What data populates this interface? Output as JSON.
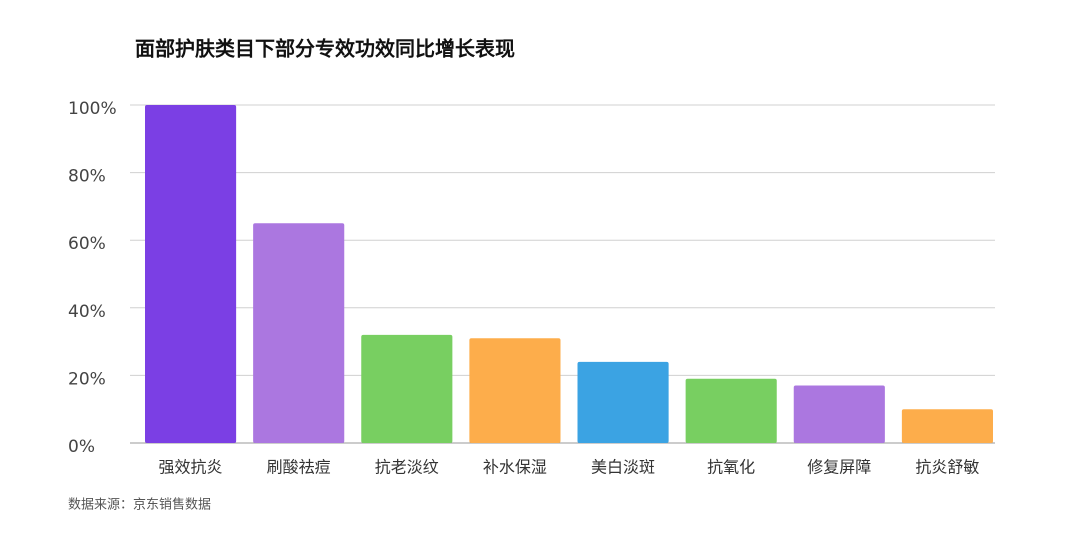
{
  "chart_data": {
    "type": "bar",
    "title": "面部护肤类目下部分专效功效同比增长表现",
    "categories": [
      "强效抗炎",
      "刷酸祛痘",
      "抗老淡纹",
      "补水保湿",
      "美白淡斑",
      "抗氧化",
      "修复屏障",
      "抗炎舒敏"
    ],
    "values": [
      100,
      65,
      32,
      31,
      24,
      19,
      17,
      10
    ],
    "colors": [
      "#7b3fe4",
      "#ab77e0",
      "#78cf61",
      "#fdad4b",
      "#3ba3e3",
      "#78cf61",
      "#ab77e0",
      "#fdad4b"
    ],
    "ylim": [
      0,
      100
    ],
    "yticks": [
      {
        "value": 0,
        "label": "0%"
      },
      {
        "value": 20,
        "label": "20%"
      },
      {
        "value": 40,
        "label": "40%"
      },
      {
        "value": 60,
        "label": "60%"
      },
      {
        "value": 80,
        "label": "80%"
      },
      {
        "value": 100,
        "label": "100%"
      }
    ],
    "grid": true,
    "source": "数据来源：京东销售数据"
  }
}
